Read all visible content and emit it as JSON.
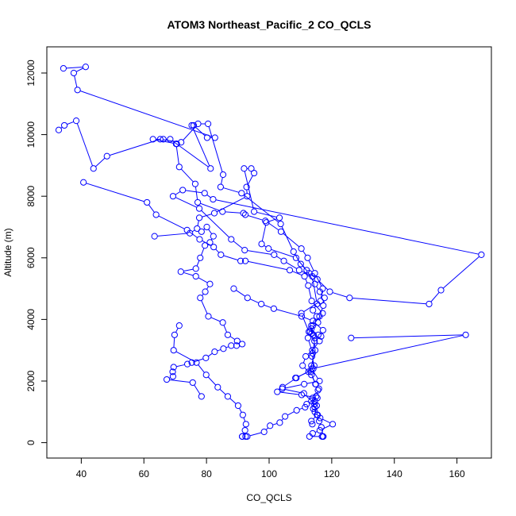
{
  "chart_data": {
    "type": "line",
    "title": "ATOM3 Northeast_Pacific_2 CO_QCLS",
    "xlabel": "CO_QCLS",
    "ylabel": "Altitude (m)",
    "xlim": [
      29,
      171
    ],
    "ylim": [
      -500,
      12850
    ],
    "x_ticks": [
      40,
      60,
      80,
      100,
      120,
      140,
      160
    ],
    "y_ticks": [
      0,
      2000,
      4000,
      6000,
      8000,
      10000,
      12000
    ],
    "x_tick_labels": [
      "40",
      "60",
      "80",
      "100",
      "120",
      "140",
      "160"
    ],
    "y_tick_labels": [
      "0",
      "2000",
      "4000",
      "6000",
      "8000",
      "10000",
      "12000"
    ],
    "grid": false,
    "legend": "none",
    "series_color": "#0000ff",
    "series": [
      {
        "x": [
          34.3,
          41.4,
          37.6,
          38.8,
          82.7,
          80.2,
          75.9,
          75.3,
          81.3,
          68.4,
          66.2,
          62.9,
          70.5,
          70.3,
          71.3,
          76.4,
          77.2,
          85.1,
          91.8,
          92.4,
          98.8,
          103.8,
          110.3,
          112.3,
          114.6,
          117.1,
          116.4,
          110.3,
          112.7,
          115.7,
          114.5,
          113.7,
          114.4,
          113.3,
          114.8,
          115.9,
          115.0,
          114.6,
          115.2,
          114.6,
          116.3,
          120.3,
          116.2,
          113.9,
          112.9,
          116.9,
          117.2
        ],
        "y": [
          12150,
          12200,
          12000,
          11450,
          9900,
          9900,
          10300,
          10300,
          8900,
          9850,
          9850,
          9850,
          9700,
          9700,
          8950,
          8400,
          7800,
          7500,
          7450,
          7400,
          7200,
          6850,
          6300,
          6000,
          5500,
          5000,
          4600,
          4200,
          3600,
          3500,
          3300,
          2800,
          2500,
          2300,
          1900,
          1750,
          1500,
          1350,
          1200,
          1000,
          800,
          600,
          400,
          300,
          200,
          200,
          200
        ]
      },
      {
        "x": [
          32.8,
          34.6,
          38.4,
          43.9,
          48.2,
          65.2,
          71.9,
          77.3,
          80.5,
          85.3,
          84.5,
          91.2,
          103.7,
          107.8,
          110.1,
          112.8,
          115.4,
          119.4,
          125.7,
          151.1,
          154.9,
          167.8,
          82.1,
          79.4,
          72.4,
          69.3,
          77.7,
          87.9,
          92.2,
          101.6,
          104.7,
          109.6,
          113.8,
          115.3,
          114.0,
          115.2,
          113.5,
          114.2,
          114.7,
          113.5,
          112.6,
          108.4
        ],
        "y": [
          10150,
          10300,
          10450,
          8900,
          9300,
          9850,
          9750,
          10350,
          10350,
          8700,
          8300,
          8100,
          7100,
          6200,
          5800,
          5500,
          5300,
          4900,
          4700,
          4500,
          4950,
          6100,
          7900,
          8100,
          8200,
          8000,
          7600,
          6600,
          6250,
          6100,
          5900,
          5600,
          5400,
          4500,
          4300,
          4100,
          3800,
          3500,
          3000,
          2500,
          2300,
          2100
        ]
      },
      {
        "x": [
          40.7,
          61.0,
          63.9,
          73.8,
          77.8,
          82.3,
          84.6,
          90.9,
          92.4,
          106.6,
          111.3,
          112.5,
          113.6,
          117.1,
          115.6,
          113.5,
          113.1,
          112.4,
          113.9,
          114.1,
          108.7,
          104.3,
          102.6,
          110.4,
          115.4,
          112.0,
          111.5,
          108.8,
          105.1,
          103.4,
          100.3,
          98.4,
          93.0,
          92.5,
          91.4
        ],
        "y": [
          8450,
          7800,
          7400,
          6900,
          6600,
          6350,
          6100,
          5900,
          5900,
          5600,
          5400,
          5100,
          4600,
          4200,
          3900,
          3700,
          3600,
          3400,
          2900,
          2400,
          2100,
          1800,
          1650,
          1550,
          1450,
          1250,
          1150,
          1050,
          850,
          650,
          550,
          350,
          200,
          200,
          200
        ]
      },
      {
        "x": [
          63.4,
          74.7,
          77.0,
          77.7,
          82.5,
          93.0,
          92.8,
          95.2,
          94.3,
          92.0,
          95.2,
          103.3,
          99.1,
          97.6,
          99.8,
          108.6,
          112.0,
          114.6,
          116.2,
          117.7,
          117.3,
          116.1,
          114.0,
          113.6,
          114.6
        ],
        "y": [
          6700,
          6800,
          6950,
          7300,
          7450,
          8000,
          8300,
          8750,
          8900,
          8900,
          7500,
          7300,
          7150,
          6450,
          6300,
          6000,
          5600,
          5150,
          4900,
          4700,
          4450,
          4100,
          3800,
          3550,
          3400
        ]
      },
      {
        "x": [
          78.4,
          80.1,
          82.2,
          81.1,
          79.5,
          78.0,
          76.6,
          71.8,
          76.6,
          81.1,
          79.6,
          78.0,
          80.6,
          85.2,
          86.8,
          89.8,
          91.4,
          89.6,
          87.9,
          85.4,
          82.6,
          79.8,
          75.3,
          73.9,
          69.5,
          69.2,
          69.3,
          67.3,
          75.6,
          78.4
        ],
        "y": [
          6850,
          7000,
          6700,
          6500,
          6400,
          6000,
          5650,
          5550,
          5400,
          5150,
          4900,
          4700,
          4100,
          3900,
          3500,
          3300,
          3200,
          3150,
          3150,
          3050,
          2950,
          2750,
          2600,
          2550,
          2450,
          2300,
          2150,
          2050,
          1950,
          1500
        ]
      },
      {
        "x": [
          88.7,
          93.1,
          97.5,
          101.5,
          110.4,
          114.0,
          117.2,
          116.6,
          116.1,
          113.8,
          111.7,
          110.7,
          113.5,
          114.9,
          115.6,
          113.9,
          114.5,
          114.1,
          115.5,
          116.0,
          116.7,
          117.3
        ],
        "y": [
          5000,
          4700,
          4500,
          4350,
          4100,
          3950,
          3650,
          3450,
          3300,
          3000,
          2800,
          2500,
          2200,
          1900,
          1700,
          1450,
          1250,
          1100,
          900,
          700,
          500,
          200
        ]
      },
      {
        "x": [
          71.3,
          69.8,
          69.5,
          76.8,
          79.9,
          83.6,
          86.8,
          90.1,
          91.6,
          92.6,
          92.3,
          91.4
        ],
        "y": [
          3800,
          3500,
          3000,
          2600,
          2200,
          1800,
          1500,
          1200,
          900,
          600,
          400,
          200
        ]
      },
      {
        "x": [
          126.2,
          162.8,
          113.6,
          116.1,
          111.2,
          104.2,
          111.1,
          113.5,
          114.6,
          115.3,
          113.5,
          113.8
        ],
        "y": [
          3400,
          3500,
          2400,
          2000,
          1900,
          1750,
          1600,
          1350,
          1150,
          900,
          700,
          600
        ]
      }
    ]
  }
}
